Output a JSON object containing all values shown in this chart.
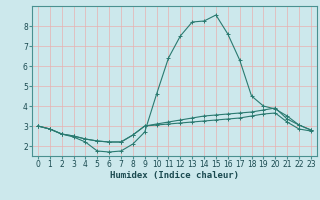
{
  "xlabel": "Humidex (Indice chaleur)",
  "bg_color": "#cce8ec",
  "grid_color": "#e8b0b0",
  "line_color": "#2a7a70",
  "spine_color": "#4a9090",
  "x_ticks": [
    0,
    1,
    2,
    3,
    4,
    5,
    6,
    7,
    8,
    9,
    10,
    11,
    12,
    13,
    14,
    15,
    16,
    17,
    18,
    19,
    20,
    21,
    22,
    23
  ],
  "y_ticks": [
    2,
    3,
    4,
    5,
    6,
    7,
    8
  ],
  "xlim": [
    -0.5,
    23.5
  ],
  "ylim": [
    1.5,
    9.0
  ],
  "line1_x": [
    0,
    1,
    2,
    3,
    4,
    5,
    6,
    7,
    8,
    9,
    10,
    11,
    12,
    13,
    14,
    15,
    16,
    17,
    18,
    19,
    20,
    21,
    22,
    23
  ],
  "line1_y": [
    3.0,
    2.85,
    2.6,
    2.45,
    2.2,
    1.75,
    1.7,
    1.75,
    2.1,
    2.7,
    4.6,
    6.4,
    7.5,
    8.2,
    8.25,
    8.55,
    7.6,
    6.3,
    4.5,
    4.0,
    3.85,
    3.5,
    3.05,
    2.8
  ],
  "line2_x": [
    0,
    1,
    2,
    3,
    4,
    5,
    6,
    7,
    8,
    9,
    10,
    11,
    12,
    13,
    14,
    15,
    16,
    17,
    18,
    19,
    20,
    21,
    22,
    23
  ],
  "line2_y": [
    3.0,
    2.85,
    2.6,
    2.5,
    2.35,
    2.25,
    2.2,
    2.2,
    2.55,
    3.0,
    3.05,
    3.1,
    3.15,
    3.2,
    3.25,
    3.3,
    3.35,
    3.4,
    3.5,
    3.6,
    3.65,
    3.2,
    2.85,
    2.75
  ],
  "line3_x": [
    0,
    1,
    2,
    3,
    4,
    5,
    6,
    7,
    8,
    9,
    10,
    11,
    12,
    13,
    14,
    15,
    16,
    17,
    18,
    19,
    20,
    21,
    22,
    23
  ],
  "line3_y": [
    3.0,
    2.85,
    2.6,
    2.5,
    2.35,
    2.25,
    2.2,
    2.2,
    2.55,
    3.0,
    3.1,
    3.2,
    3.3,
    3.4,
    3.5,
    3.55,
    3.6,
    3.65,
    3.7,
    3.8,
    3.9,
    3.35,
    3.05,
    2.8
  ],
  "tick_fontsize": 5.5,
  "xlabel_fontsize": 6.5
}
